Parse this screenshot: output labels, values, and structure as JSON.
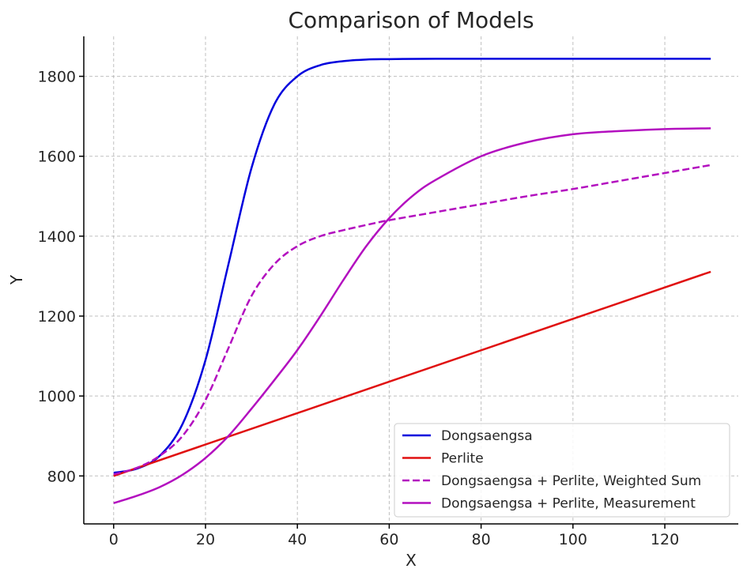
{
  "chart_data": {
    "type": "line",
    "title": "Comparison of Models",
    "xlabel": "X",
    "ylabel": "Y",
    "xlim": [
      -6.5,
      136
    ],
    "ylim": [
      680,
      1900
    ],
    "x_ticks": [
      0,
      20,
      40,
      60,
      80,
      100,
      120
    ],
    "y_ticks": [
      800,
      1000,
      1200,
      1400,
      1600,
      1800
    ],
    "grid": true,
    "legend_position": "bottom-right",
    "series": [
      {
        "name": "Dongsaengsa",
        "color": "#0000dd",
        "style": "solid",
        "x": [
          0,
          5,
          10,
          15,
          20,
          25,
          30,
          35,
          40,
          45,
          50,
          55,
          60,
          70,
          80,
          90,
          100,
          110,
          120,
          130
        ],
        "y": [
          808,
          818,
          850,
          930,
          1090,
          1330,
          1570,
          1730,
          1800,
          1828,
          1838,
          1842,
          1843,
          1844,
          1844,
          1844,
          1844,
          1844,
          1844,
          1844
        ]
      },
      {
        "name": "Perlite",
        "color": "#e01010",
        "style": "solid",
        "x": [
          0,
          130
        ],
        "y": [
          800,
          1311
        ]
      },
      {
        "name": "Dongsaengsa + Perlite, Weighted Sum",
        "color": "#b30fbf",
        "style": "dashed",
        "x": [
          0,
          5,
          10,
          15,
          20,
          25,
          30,
          35,
          40,
          45,
          50,
          55,
          60,
          70,
          80,
          90,
          100,
          110,
          120,
          130
        ],
        "y": [
          804,
          820,
          850,
          900,
          990,
          1120,
          1250,
          1330,
          1375,
          1400,
          1415,
          1428,
          1440,
          1460,
          1480,
          1500,
          1518,
          1538,
          1558,
          1578
        ]
      },
      {
        "name": "Dongsaengsa + Perlite, Measurement",
        "color": "#b30fbf",
        "style": "solid",
        "x": [
          0,
          5,
          10,
          15,
          20,
          25,
          30,
          35,
          40,
          45,
          50,
          55,
          60,
          65,
          70,
          80,
          90,
          100,
          110,
          120,
          130
        ],
        "y": [
          732,
          750,
          772,
          803,
          845,
          900,
          968,
          1040,
          1115,
          1200,
          1290,
          1375,
          1445,
          1500,
          1540,
          1600,
          1635,
          1655,
          1663,
          1668,
          1670
        ]
      }
    ]
  }
}
